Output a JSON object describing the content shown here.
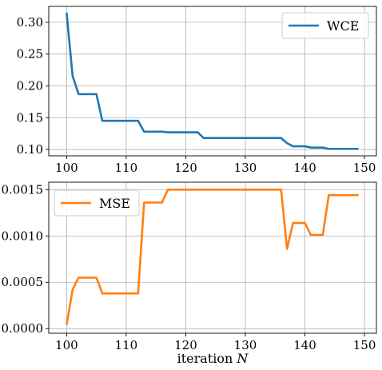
{
  "chart_data": [
    {
      "type": "line",
      "xlim": [
        97,
        152
      ],
      "ylim": [
        0.09,
        0.325
      ],
      "grid": true,
      "legend": "upper right",
      "xticks": [
        100,
        110,
        120,
        130,
        140,
        150
      ],
      "xtick_labels": [
        "100",
        "110",
        "120",
        "130",
        "140",
        "150"
      ],
      "yticks": [
        0.1,
        0.15,
        0.2,
        0.25,
        0.3
      ],
      "ytick_labels": [
        "0.10",
        "0.15",
        "0.20",
        "0.25",
        "0.30"
      ],
      "xlabel": "",
      "series": [
        {
          "name": "WCE",
          "color": "#1f77b4",
          "x": [
            100,
            101,
            102,
            103,
            104,
            105,
            106,
            107,
            108,
            109,
            110,
            111,
            112,
            113,
            114,
            115,
            116,
            117,
            118,
            119,
            120,
            121,
            122,
            123,
            124,
            125,
            126,
            127,
            128,
            129,
            130,
            131,
            132,
            133,
            134,
            135,
            136,
            137,
            138,
            139,
            140,
            141,
            142,
            143,
            144,
            145,
            146,
            147,
            148,
            149
          ],
          "y": [
            0.315,
            0.216,
            0.187,
            0.187,
            0.187,
            0.187,
            0.145,
            0.145,
            0.145,
            0.145,
            0.145,
            0.145,
            0.145,
            0.128,
            0.128,
            0.128,
            0.128,
            0.127,
            0.127,
            0.127,
            0.127,
            0.127,
            0.127,
            0.118,
            0.118,
            0.118,
            0.118,
            0.118,
            0.118,
            0.118,
            0.118,
            0.118,
            0.118,
            0.118,
            0.118,
            0.118,
            0.118,
            0.11,
            0.105,
            0.105,
            0.105,
            0.103,
            0.103,
            0.103,
            0.101,
            0.101,
            0.101,
            0.101,
            0.101,
            0.101
          ]
        }
      ]
    },
    {
      "type": "line",
      "xlim": [
        97,
        152
      ],
      "ylim": [
        -5e-05,
        0.00158
      ],
      "grid": true,
      "legend": "upper left",
      "xticks": [
        100,
        110,
        120,
        130,
        140,
        150
      ],
      "xtick_labels": [
        "100",
        "110",
        "120",
        "130",
        "140",
        "150"
      ],
      "yticks": [
        0.0,
        0.0005,
        0.001,
        0.0015
      ],
      "ytick_labels": [
        "0.0000",
        "0.0005",
        "0.0010",
        "0.0015"
      ],
      "xlabel": "iteration N",
      "series": [
        {
          "name": "MSE",
          "color": "#ff7f0e",
          "x": [
            100,
            101,
            102,
            103,
            104,
            105,
            106,
            107,
            108,
            109,
            110,
            111,
            112,
            113,
            114,
            115,
            116,
            117,
            118,
            119,
            120,
            121,
            122,
            123,
            124,
            125,
            126,
            127,
            128,
            129,
            130,
            131,
            132,
            133,
            134,
            135,
            136,
            137,
            138,
            139,
            140,
            141,
            142,
            143,
            144,
            145,
            146,
            147,
            148,
            149
          ],
          "y": [
            4e-05,
            0.00042,
            0.00055,
            0.00055,
            0.00055,
            0.00055,
            0.00038,
            0.00038,
            0.00038,
            0.00038,
            0.00038,
            0.00038,
            0.00038,
            0.00136,
            0.00136,
            0.00136,
            0.00136,
            0.0015,
            0.0015,
            0.0015,
            0.0015,
            0.0015,
            0.0015,
            0.0015,
            0.0015,
            0.0015,
            0.0015,
            0.0015,
            0.0015,
            0.0015,
            0.0015,
            0.0015,
            0.0015,
            0.0015,
            0.0015,
            0.0015,
            0.0015,
            0.00086,
            0.00114,
            0.00114,
            0.00114,
            0.00101,
            0.00101,
            0.00101,
            0.00144,
            0.00144,
            0.00144,
            0.00144,
            0.00144,
            0.00144
          ]
        }
      ]
    }
  ]
}
